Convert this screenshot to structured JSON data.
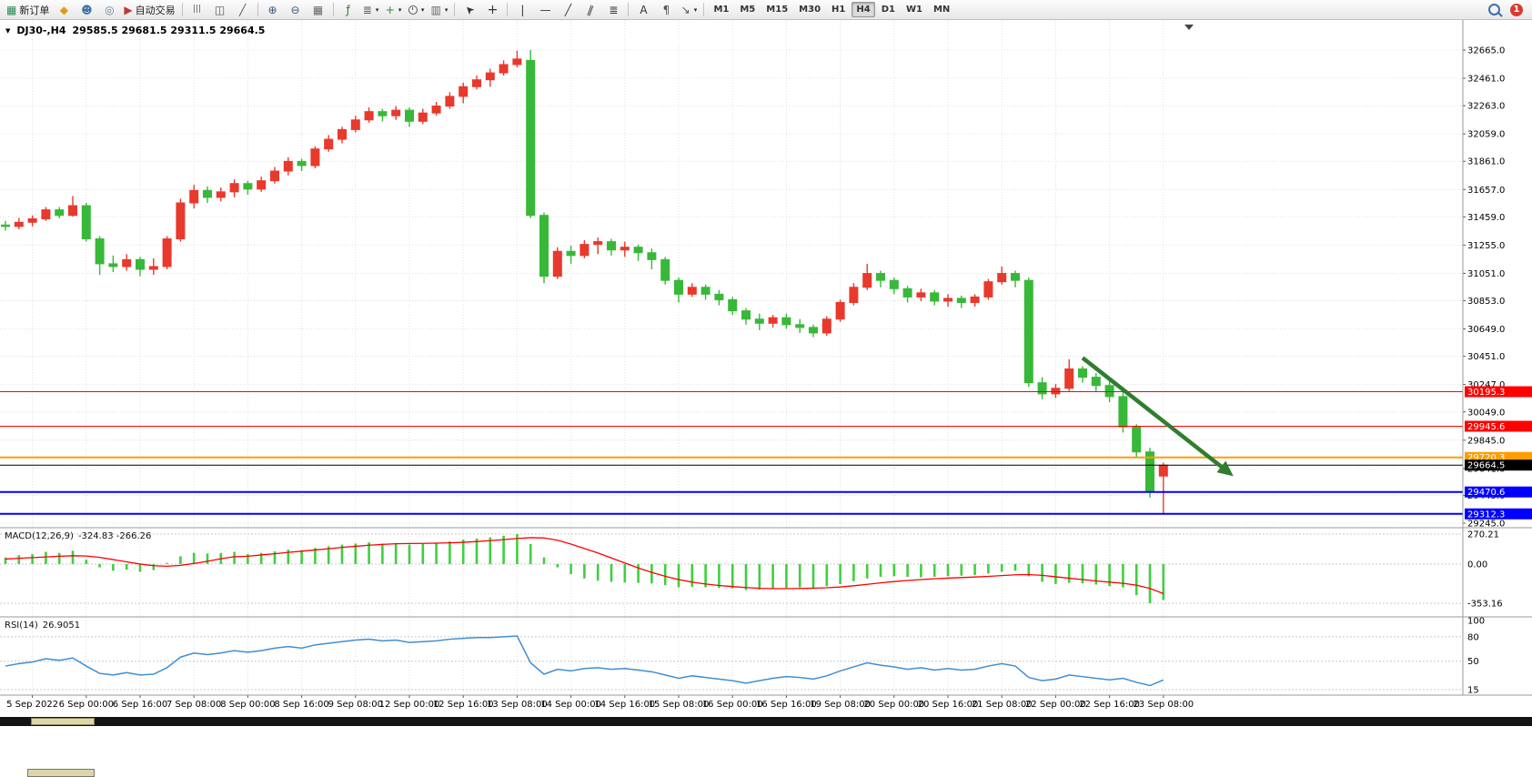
{
  "toolbar": {
    "items": [
      {
        "name": "new-order-button",
        "icon": "new-order-icon",
        "glyph": "▦",
        "color": "#2e8b57",
        "label": "新订单"
      },
      {
        "name": "market-watch-button",
        "icon": "market-watch-icon",
        "glyph": "◆",
        "color": "#d99e18"
      },
      {
        "name": "navigator-button",
        "icon": "navigator-icon",
        "glyph": "☻",
        "color": "#4173a3"
      },
      {
        "name": "terminal-button",
        "icon": "terminal-icon",
        "glyph": "◎",
        "color": "#6b7d8a"
      },
      {
        "name": "auto-trading-button",
        "icon": "auto-trading-icon",
        "glyph": "▶",
        "color": "#bf3a30",
        "label": "自动交易"
      },
      {
        "sep": true
      },
      {
        "name": "bar-chart-button",
        "icon": "bar-chart-icon",
        "glyph": "|||",
        "color": "#555",
        "small": true
      },
      {
        "name": "candlestick-chart-button",
        "icon": "candlestick-chart-icon",
        "glyph": "◫",
        "color": "#555"
      },
      {
        "name": "line-chart-button",
        "icon": "line-chart-icon",
        "glyph": "╱",
        "color": "#555"
      },
      {
        "sep": true
      },
      {
        "name": "zoom-in-button",
        "icon": "zoom-in-icon",
        "glyph": "⊕",
        "color": "#39587a"
      },
      {
        "name": "zoom-out-button",
        "icon": "zoom-out-icon",
        "glyph": "⊖",
        "color": "#39587a"
      },
      {
        "name": "tile-windows-button",
        "icon": "tile-windows-icon",
        "glyph": "▦",
        "color": "#666"
      },
      {
        "sep": true
      },
      {
        "name": "indicators-button",
        "icon": "indicators-icon",
        "glyph": "ƒ",
        "color": "#2c7c2c"
      },
      {
        "name": "indicator-list-button",
        "icon": "indicator-list-icon",
        "glyph": "≣",
        "color": "#555",
        "caret": true
      },
      {
        "name": "new-chart-button",
        "icon": "new-chart-icon",
        "glyph": "+",
        "color": "#2c8c2c",
        "caret": true
      },
      {
        "name": "period-button",
        "icon": "clock-icon",
        "cssIcon": "clock-css",
        "caret": true
      },
      {
        "name": "template-button",
        "icon": "template-icon",
        "glyph": "▥",
        "color": "#666",
        "caret": true
      },
      {
        "sep": true
      },
      {
        "name": "cursor-button",
        "icon": "cursor-icon",
        "glyph": "➤",
        "color": "#333",
        "rot": -135
      },
      {
        "name": "crosshair-button",
        "icon": "crosshair-icon",
        "glyph": "+",
        "color": "#333",
        "big": true
      },
      {
        "sep": true
      },
      {
        "name": "vertical-line-button",
        "icon": "vertical-line-icon",
        "glyph": "|",
        "color": "#333"
      },
      {
        "name": "horizontal-line-button",
        "icon": "horizontal-line-icon",
        "glyph": "—",
        "color": "#333"
      },
      {
        "name": "trendline-button",
        "icon": "trendline-icon",
        "glyph": "╱",
        "color": "#333"
      },
      {
        "name": "channel-button",
        "icon": "channel-icon",
        "glyph": "∥",
        "color": "#333",
        "rot": 20
      },
      {
        "name": "fibonacci-button",
        "icon": "fibonacci-icon",
        "glyph": "≣",
        "color": "#333"
      },
      {
        "sep": true
      },
      {
        "name": "text-button",
        "icon": "text-icon",
        "glyph": "A",
        "color": "#333"
      },
      {
        "name": "text-label-button",
        "icon": "text-label-icon",
        "glyph": "¶",
        "color": "#555"
      },
      {
        "name": "arrows-button",
        "icon": "arrows-icon",
        "glyph": "↘",
        "color": "#555",
        "caret": true
      },
      {
        "sep": true
      }
    ],
    "timeframes": [
      "M1",
      "M5",
      "M15",
      "M30",
      "H1",
      "H4",
      "D1",
      "W1",
      "MN"
    ],
    "active_timeframe": "H4",
    "notification_count": "1"
  },
  "chart": {
    "symbol_period": "DJ30-,H4",
    "ohlc_text": "29585.5 29681.5 29311.5 29664.5",
    "macd_name": "MACD(12,26,9)",
    "macd_values": "-324.83 -266.26",
    "rsi_name": "RSI(14)",
    "rsi_value": "26.9051"
  },
  "colors": {
    "up": "#e8392d",
    "down": "#38b838",
    "macd_hist": "#3fcf3f",
    "macd_signal": "#ff0000",
    "rsi_line": "#3f8fd2",
    "grid": "#e0e0e0",
    "separator": "#9a9a9a",
    "axis_text": "#000000",
    "arrow": "#2f7e2f"
  },
  "chart_data": {
    "type": "candlestick",
    "symbol": "DJ30-",
    "period": "H4",
    "last_bar": {
      "open": 29585.5,
      "high": 29681.5,
      "low": 29311.5,
      "close": 29664.5
    },
    "price_axis": [
      "32665.0",
      "32461.0",
      "32263.0",
      "32059.0",
      "31861.0",
      "31657.0",
      "31459.0",
      "31255.0",
      "31051.0",
      "30853.0",
      "30649.0",
      "30451.0",
      "30247.0",
      "30049.0",
      "29845.0",
      "29641.0",
      "29445.0",
      "29245.0"
    ],
    "time_labels": [
      "5 Sep 2022",
      "6 Sep 00:00",
      "6 Sep 16:00",
      "7 Sep 08:00",
      "8 Sep 00:00",
      "8 Sep 16:00",
      "9 Sep 08:00",
      "12 Sep 00:00",
      "12 Sep 16:00",
      "13 Sep 08:00",
      "14 Sep 00:00",
      "14 Sep 16:00",
      "15 Sep 08:00",
      "16 Sep 00:00",
      "16 Sep 16:00",
      "19 Sep 08:00",
      "20 Sep 00:00",
      "20 Sep 16:00",
      "21 Sep 08:00",
      "22 Sep 00:00",
      "22 Sep 16:00",
      "23 Sep 08:00"
    ],
    "candles": [
      [
        31400,
        31430,
        31360,
        31390
      ],
      [
        31390,
        31450,
        31370,
        31420
      ],
      [
        31420,
        31470,
        31390,
        31445
      ],
      [
        31445,
        31530,
        31430,
        31510
      ],
      [
        31510,
        31530,
        31450,
        31470
      ],
      [
        31470,
        31610,
        31460,
        31540
      ],
      [
        31540,
        31560,
        31280,
        31300
      ],
      [
        31300,
        31320,
        31040,
        31120
      ],
      [
        31120,
        31180,
        31060,
        31100
      ],
      [
        31100,
        31190,
        31070,
        31150
      ],
      [
        31150,
        31170,
        31030,
        31080
      ],
      [
        31080,
        31160,
        31040,
        31100
      ],
      [
        31100,
        31320,
        31080,
        31300
      ],
      [
        31300,
        31590,
        31280,
        31560
      ],
      [
        31560,
        31690,
        31520,
        31650
      ],
      [
        31650,
        31680,
        31560,
        31600
      ],
      [
        31600,
        31670,
        31570,
        31640
      ],
      [
        31640,
        31730,
        31600,
        31700
      ],
      [
        31700,
        31720,
        31620,
        31660
      ],
      [
        31660,
        31750,
        31640,
        31720
      ],
      [
        31720,
        31820,
        31700,
        31790
      ],
      [
        31790,
        31890,
        31760,
        31860
      ],
      [
        31860,
        31880,
        31790,
        31830
      ],
      [
        31830,
        31970,
        31810,
        31950
      ],
      [
        31950,
        32050,
        31930,
        32020
      ],
      [
        32020,
        32110,
        31990,
        32090
      ],
      [
        32090,
        32190,
        32070,
        32160
      ],
      [
        32160,
        32250,
        32140,
        32220
      ],
      [
        32220,
        32240,
        32150,
        32190
      ],
      [
        32190,
        32260,
        32160,
        32230
      ],
      [
        32230,
        32250,
        32110,
        32150
      ],
      [
        32150,
        32240,
        32130,
        32210
      ],
      [
        32210,
        32290,
        32190,
        32260
      ],
      [
        32260,
        32360,
        32240,
        32330
      ],
      [
        32330,
        32430,
        32280,
        32400
      ],
      [
        32400,
        32480,
        32380,
        32450
      ],
      [
        32450,
        32530,
        32400,
        32500
      ],
      [
        32500,
        32590,
        32480,
        32560
      ],
      [
        32560,
        32660,
        32540,
        32600
      ],
      [
        32590,
        32665,
        31450,
        31470
      ],
      [
        31470,
        31490,
        30980,
        31030
      ],
      [
        31030,
        31240,
        31010,
        31210
      ],
      [
        31210,
        31250,
        31120,
        31180
      ],
      [
        31180,
        31290,
        31160,
        31260
      ],
      [
        31260,
        31310,
        31190,
        31280
      ],
      [
        31280,
        31300,
        31180,
        31220
      ],
      [
        31220,
        31280,
        31170,
        31240
      ],
      [
        31240,
        31260,
        31140,
        31200
      ],
      [
        31200,
        31230,
        31080,
        31150
      ],
      [
        31150,
        31170,
        30970,
        31000
      ],
      [
        31000,
        31020,
        30840,
        30900
      ],
      [
        30900,
        30980,
        30880,
        30950
      ],
      [
        30950,
        30970,
        30860,
        30900
      ],
      [
        30900,
        30930,
        30820,
        30860
      ],
      [
        30860,
        30880,
        30750,
        30780
      ],
      [
        30780,
        30800,
        30680,
        30720
      ],
      [
        30720,
        30760,
        30640,
        30690
      ],
      [
        30690,
        30750,
        30660,
        30730
      ],
      [
        30730,
        30760,
        30650,
        30680
      ],
      [
        30680,
        30720,
        30620,
        30660
      ],
      [
        30660,
        30680,
        30590,
        30620
      ],
      [
        30620,
        30740,
        30600,
        30720
      ],
      [
        30720,
        30860,
        30700,
        30840
      ],
      [
        30840,
        30980,
        30820,
        30950
      ],
      [
        30950,
        31120,
        30930,
        31050
      ],
      [
        31050,
        31070,
        30950,
        31000
      ],
      [
        31000,
        31020,
        30900,
        30940
      ],
      [
        30940,
        30960,
        30840,
        30880
      ],
      [
        30880,
        30940,
        30850,
        30910
      ],
      [
        30910,
        30930,
        30820,
        30850
      ],
      [
        30850,
        30900,
        30810,
        30870
      ],
      [
        30870,
        30890,
        30800,
        30840
      ],
      [
        30840,
        30900,
        30810,
        30880
      ],
      [
        30880,
        31010,
        30860,
        30990
      ],
      [
        30990,
        31100,
        30970,
        31050
      ],
      [
        31050,
        31070,
        30950,
        31000
      ],
      [
        31000,
        31020,
        30230,
        30260
      ],
      [
        30260,
        30300,
        30140,
        30180
      ],
      [
        30180,
        30250,
        30150,
        30220
      ],
      [
        30220,
        30430,
        30200,
        30360
      ],
      [
        30360,
        30380,
        30260,
        30300
      ],
      [
        30300,
        30330,
        30200,
        30240
      ],
      [
        30240,
        30270,
        30120,
        30160
      ],
      [
        30160,
        30200,
        29900,
        29940
      ],
      [
        29940,
        29960,
        29720,
        29760
      ],
      [
        29760,
        29790,
        29430,
        29470
      ],
      [
        29585.5,
        29681.5,
        29311.5,
        29664.5
      ]
    ],
    "hlines": [
      {
        "price": 30195.3,
        "label": "30195.3",
        "color": "#ff0000",
        "width": 1
      },
      {
        "price": 29945.6,
        "label": "29945.6",
        "color": "#ff0000",
        "width": 1
      },
      {
        "price": 29720.3,
        "label": "29720.3",
        "color": "#ff9d00",
        "width": 2
      },
      {
        "price": 29664.5,
        "label": "29664.5",
        "color": "#000000",
        "width": 1
      },
      {
        "price": 29470.6,
        "label": "29470.6",
        "color": "#0000ff",
        "width": 2
      },
      {
        "price": 29312.3,
        "label": "29312.3",
        "color": "#0000ff",
        "width": 2
      }
    ],
    "arrow": {
      "from_bar": 80,
      "from_price": 30440,
      "to_bar": 91.2,
      "to_price": 29585
    },
    "macd": {
      "params": "12,26,9",
      "current_macd": -324.83,
      "current_signal": -266.26,
      "axis": [
        "270.21",
        "0.00",
        "-353.16"
      ],
      "histogram": [
        60,
        80,
        90,
        110,
        100,
        120,
        40,
        -30,
        -60,
        -50,
        -70,
        -55,
        10,
        70,
        100,
        95,
        100,
        110,
        90,
        100,
        115,
        130,
        125,
        145,
        160,
        175,
        185,
        195,
        185,
        190,
        175,
        180,
        190,
        205,
        220,
        230,
        240,
        255,
        270.21,
        180,
        60,
        -30,
        -90,
        -130,
        -150,
        -160,
        -165,
        -170,
        -175,
        -190,
        -210,
        -205,
        -210,
        -215,
        -220,
        -235,
        -230,
        -225,
        -215,
        -210,
        -215,
        -200,
        -180,
        -155,
        -130,
        -115,
        -110,
        -115,
        -120,
        -115,
        -110,
        -105,
        -100,
        -85,
        -70,
        -60,
        -110,
        -160,
        -180,
        -170,
        -175,
        -185,
        -200,
        -210,
        -280,
        -353.16,
        -324.83
      ],
      "signal": [
        45,
        52,
        58,
        64,
        70,
        75,
        72,
        60,
        40,
        20,
        0,
        -15,
        -20,
        -12,
        5,
        25,
        48,
        66,
        70,
        82,
        93,
        105,
        116,
        127,
        138,
        150,
        160,
        170,
        177,
        183,
        185,
        186,
        188,
        191,
        196,
        203,
        211,
        220,
        230,
        238,
        235,
        215,
        180,
        140,
        100,
        55,
        10,
        -35,
        -75,
        -110,
        -140,
        -163,
        -180,
        -193,
        -203,
        -212,
        -219,
        -222,
        -222,
        -220,
        -218,
        -214,
        -207,
        -196,
        -183,
        -170,
        -158,
        -148,
        -140,
        -133,
        -127,
        -122,
        -117,
        -111,
        -104,
        -97,
        -95,
        -102,
        -115,
        -128,
        -140,
        -152,
        -163,
        -174,
        -190,
        -220,
        -266.26
      ]
    },
    "rsi": {
      "params": "14",
      "current": 26.9051,
      "levels": [
        "100",
        "80",
        "50",
        "15"
      ],
      "series": [
        44,
        47,
        49,
        53,
        51,
        54,
        44,
        35,
        33,
        36,
        33,
        34,
        42,
        55,
        60,
        58,
        60,
        63,
        61,
        63,
        66,
        68,
        66,
        70,
        72,
        74,
        76,
        77,
        75,
        76,
        73,
        74,
        75,
        77,
        78,
        79,
        79,
        80,
        81,
        48,
        34,
        40,
        38,
        41,
        42,
        40,
        41,
        39,
        37,
        33,
        29,
        32,
        30,
        28,
        26,
        23,
        26,
        29,
        31,
        30,
        28,
        32,
        38,
        43,
        48,
        45,
        43,
        40,
        42,
        39,
        41,
        39,
        40,
        44,
        47,
        44,
        30,
        26,
        28,
        33,
        31,
        29,
        27,
        29,
        24,
        20,
        26.9051
      ]
    }
  }
}
